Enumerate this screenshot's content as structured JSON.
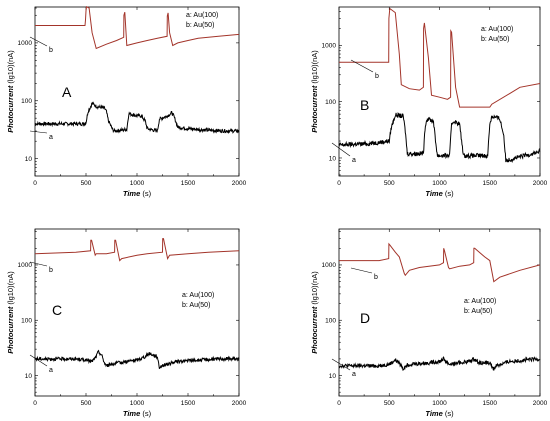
{
  "chart_data": [
    {
      "id": "A",
      "type": "line",
      "panel_label": "A",
      "xlabel": "Time",
      "xunit": "(s)",
      "ylabel": "Photocurrent",
      "yunit": "(lg10)(nA)",
      "x_ticks": [
        "0",
        "500",
        "1000",
        "1500",
        "2000"
      ],
      "y_ticks": [
        "10",
        "100",
        "1000"
      ],
      "xlim": [
        0,
        2000
      ],
      "ylim_log10": [
        0.7,
        3.62
      ],
      "legend": [
        "a: Au(100)",
        "b: Au(50)"
      ],
      "legend_placement": "top-right",
      "series": [
        {
          "name": "a",
          "color": "#000000",
          "noise": 0.03,
          "x": [
            0,
            480,
            500,
            520,
            560,
            600,
            680,
            700,
            720,
            760,
            780,
            900,
            920,
            1000,
            1040,
            1080,
            1100,
            1200,
            1220,
            1300,
            1340,
            1360,
            1400,
            1500,
            1700,
            1900,
            2000
          ],
          "y": [
            40,
            40,
            42,
            65,
            90,
            80,
            75,
            65,
            45,
            32,
            30,
            32,
            60,
            55,
            55,
            45,
            33,
            30,
            48,
            55,
            62,
            55,
            35,
            33,
            31,
            30,
            30
          ]
        },
        {
          "name": "b",
          "color": "#a3342a",
          "noise": 0,
          "x": [
            0,
            490,
            495,
            500,
            505,
            530,
            560,
            600,
            700,
            800,
            870,
            872,
            880,
            900,
            1000,
            1100,
            1200,
            1295,
            1297,
            1305,
            1320,
            1350,
            1400,
            1500,
            1600,
            1800,
            2000
          ],
          "y": [
            2000,
            2000,
            2500,
            3600,
            4200,
            4000,
            1500,
            800,
            950,
            1100,
            1250,
            3000,
            3400,
            900,
            1000,
            1100,
            1200,
            1300,
            2900,
            3300,
            1500,
            900,
            1000,
            1100,
            1200,
            1300,
            1400
          ]
        }
      ]
    },
    {
      "id": "B",
      "type": "line",
      "panel_label": "B",
      "xlabel": "Time",
      "xunit": "(s)",
      "ylabel": "Photocurrent",
      "yunit": "(lg10)(nA)",
      "x_ticks": [
        "0",
        "500",
        "1000",
        "1500",
        "2000"
      ],
      "y_ticks": [
        "10",
        "100",
        "1000"
      ],
      "xlim": [
        0,
        2000
      ],
      "ylim_log10": [
        0.68,
        3.68
      ],
      "legend": [
        "a: Au(100)",
        "b: Au(50)"
      ],
      "legend_placement": "top-right",
      "series": [
        {
          "name": "a",
          "color": "#000000",
          "noise": 0.04,
          "x": [
            0,
            300,
            500,
            520,
            560,
            640,
            660,
            680,
            840,
            860,
            880,
            940,
            960,
            980,
            1100,
            1120,
            1140,
            1200,
            1220,
            1240,
            1480,
            1500,
            1520,
            1600,
            1640,
            1660,
            2000
          ],
          "y": [
            17,
            18,
            20,
            35,
            58,
            55,
            30,
            12,
            12,
            40,
            50,
            45,
            20,
            11,
            11,
            40,
            45,
            40,
            20,
            11,
            11,
            40,
            55,
            50,
            25,
            9,
            13
          ]
        },
        {
          "name": "b",
          "color": "#a3342a",
          "noise": 0,
          "x": [
            0,
            495,
            497,
            505,
            560,
            600,
            620,
            700,
            800,
            840,
            842,
            850,
            890,
            920,
            1000,
            1080,
            1110,
            1112,
            1120,
            1160,
            1200,
            1500,
            1520,
            1700,
            1800,
            2000
          ],
          "y": [
            500,
            500,
            3000,
            4500,
            3800,
            700,
            200,
            170,
            160,
            180,
            2000,
            2500,
            600,
            130,
            120,
            110,
            120,
            1800,
            1700,
            180,
            80,
            80,
            90,
            140,
            180,
            210
          ]
        }
      ]
    },
    {
      "id": "C",
      "type": "line",
      "panel_label": "C",
      "xlabel": "Time",
      "xunit": "(s)",
      "ylabel": "Photocurrent",
      "yunit": "(lg10)(nA)",
      "x_ticks": [
        "0",
        "500",
        "1000",
        "1500",
        "2000"
      ],
      "y_ticks": [
        "10",
        "100",
        "1000"
      ],
      "xlim": [
        0,
        2000
      ],
      "ylim_log10": [
        0.63,
        3.65
      ],
      "legend": [
        "a: Au(100)",
        "b: Au(50)"
      ],
      "legend_placement": "middle-right",
      "series": [
        {
          "name": "a",
          "color": "#000000",
          "noise": 0.03,
          "x": [
            0,
            400,
            500,
            560,
            600,
            620,
            640,
            660,
            680,
            700,
            740,
            900,
            1000,
            1080,
            1120,
            1200,
            1220,
            1240,
            1400,
            1600,
            1800,
            2000
          ],
          "y": [
            20,
            20,
            19,
            18,
            22,
            27,
            25,
            22,
            17,
            15,
            16,
            18,
            19,
            22,
            25,
            22,
            14,
            15,
            18,
            19,
            20,
            20
          ]
        },
        {
          "name": "b",
          "color": "#a3342a",
          "noise": 0,
          "x": [
            0,
            400,
            545,
            547,
            555,
            590,
            600,
            700,
            780,
            782,
            790,
            830,
            850,
            1000,
            1100,
            1250,
            1252,
            1260,
            1300,
            1320,
            1500,
            1700,
            2000
          ],
          "y": [
            1600,
            1700,
            1800,
            2800,
            2800,
            1500,
            1600,
            1600,
            1700,
            2800,
            2800,
            1200,
            1300,
            1500,
            1600,
            1700,
            3000,
            3000,
            1300,
            1500,
            1600,
            1700,
            1800
          ]
        }
      ]
    },
    {
      "id": "D",
      "type": "line",
      "panel_label": "D",
      "xlabel": "Time",
      "xunit": "(s)",
      "ylabel": "Photocurrent",
      "yunit": "(lg10)(nA)",
      "x_ticks": [
        "0",
        "500",
        "1000",
        "1500",
        "2000"
      ],
      "y_ticks": [
        "10",
        "100",
        "1000"
      ],
      "xlim": [
        0,
        2000
      ],
      "ylim_log10": [
        0.63,
        3.65
      ],
      "legend": [
        "a: Au(100)",
        "b: Au(50)"
      ],
      "legend_placement": "middle-right",
      "series": [
        {
          "name": "a",
          "color": "#000000",
          "noise": 0.035,
          "x": [
            0,
            400,
            500,
            560,
            600,
            640,
            660,
            700,
            900,
            1000,
            1040,
            1080,
            1100,
            1300,
            1340,
            1400,
            1500,
            1540,
            1560,
            1700,
            2000
          ],
          "y": [
            15,
            15,
            16,
            19,
            17,
            13,
            15,
            16,
            17,
            18,
            20,
            17,
            16,
            18,
            20,
            17,
            17,
            13,
            15,
            18,
            20
          ]
        },
        {
          "name": "b",
          "color": "#a3342a",
          "noise": 0,
          "x": [
            0,
            400,
            495,
            497,
            505,
            560,
            600,
            650,
            660,
            700,
            800,
            1000,
            1040,
            1042,
            1050,
            1090,
            1100,
            1200,
            1300,
            1340,
            1342,
            1350,
            1450,
            1500,
            1540,
            1600,
            1800,
            2000
          ],
          "y": [
            1200,
            1200,
            1300,
            2400,
            2300,
            1700,
            1400,
            700,
            650,
            800,
            900,
            1000,
            1100,
            2000,
            1800,
            900,
            850,
            950,
            1000,
            1100,
            2000,
            2000,
            1400,
            1200,
            500,
            600,
            800,
            1000
          ]
        }
      ]
    }
  ]
}
